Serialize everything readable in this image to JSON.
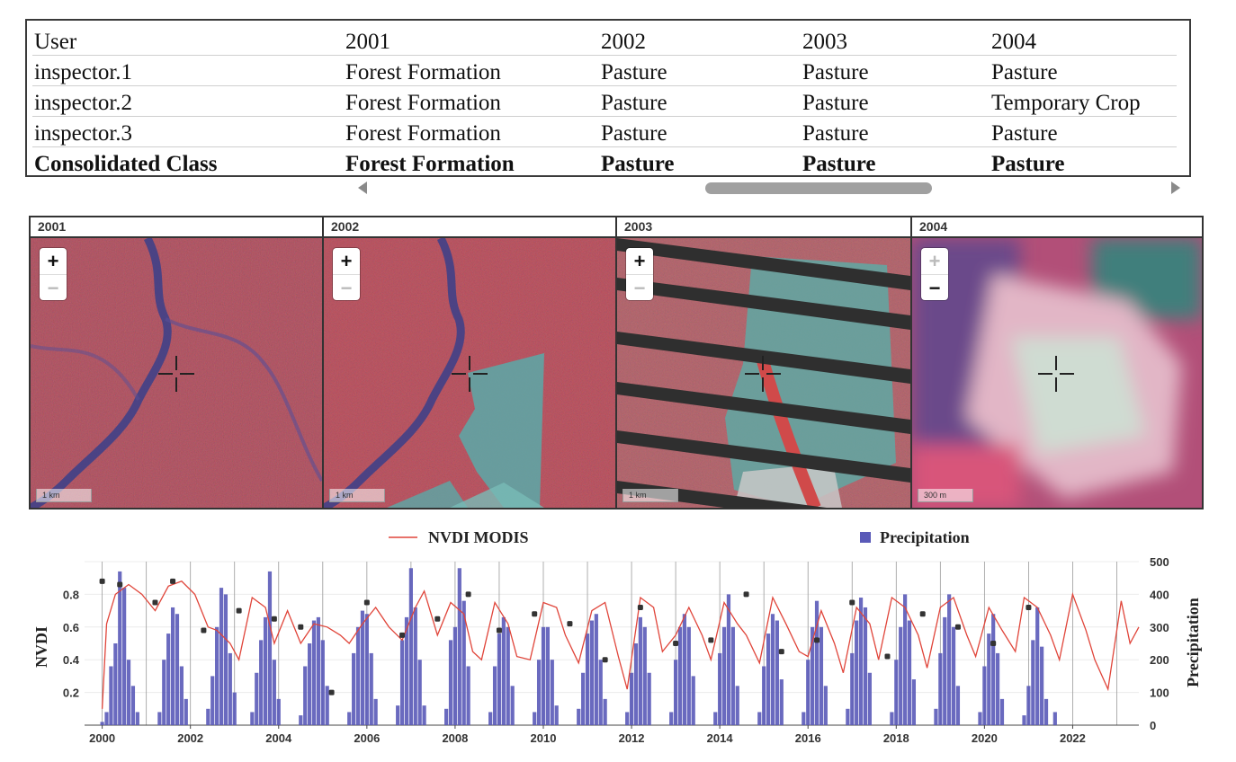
{
  "table": {
    "headers": [
      "User",
      "2001",
      "2002",
      "2003",
      "2004"
    ],
    "rows": [
      [
        "inspector.1",
        "Forest Formation",
        "Pasture",
        "Pasture",
        "Pasture"
      ],
      [
        "inspector.2",
        "Forest Formation",
        "Pasture",
        "Pasture",
        "Temporary Crop"
      ],
      [
        "inspector.3",
        "Forest Formation",
        "Pasture",
        "Pasture",
        "Pasture"
      ],
      [
        "Consolidated Class",
        "Forest Formation",
        "Pasture",
        "Pasture",
        "Pasture"
      ]
    ]
  },
  "panels": [
    {
      "title": "2001",
      "scale": "1 km",
      "zoom_in": "+",
      "zoom_out": "−",
      "zoom_in_disabled": false,
      "zoom_out_disabled": true
    },
    {
      "title": "2002",
      "scale": "1 km",
      "zoom_in": "+",
      "zoom_out": "−",
      "zoom_in_disabled": false,
      "zoom_out_disabled": true
    },
    {
      "title": "2003",
      "scale": "1 km",
      "zoom_in": "+",
      "zoom_out": "−",
      "zoom_in_disabled": false,
      "zoom_out_disabled": true
    },
    {
      "title": "2004",
      "scale": "300 m",
      "zoom_in": "+",
      "zoom_out": "−",
      "zoom_in_disabled": true,
      "zoom_out_disabled": false
    }
  ],
  "chart_data": {
    "type": "line",
    "legend": [
      "NVDI MODIS",
      "Precipitation"
    ],
    "ylabel_left": "NVDI",
    "ylabel_right": "Precipitation",
    "x_ticks": [
      "2000",
      "2002",
      "2004",
      "2006",
      "2008",
      "2010",
      "2012",
      "2014",
      "2016",
      "2018",
      "2020",
      "2022"
    ],
    "y_left_ticks": [
      "0.2",
      "0.4",
      "0.6",
      "0.8"
    ],
    "y_right_ticks": [
      "0",
      "100",
      "200",
      "300",
      "400",
      "500"
    ],
    "x_range": [
      1999.6,
      2023.5
    ],
    "y_left_range": [
      0,
      1.0
    ],
    "y_right_range": [
      0,
      500
    ],
    "grid": true,
    "legend_placement": "top",
    "colors": {
      "ndvi": "#e0453a",
      "precip": "#5a5ab8",
      "markers": "#333333"
    },
    "series": [
      {
        "name": "NVDI MODIS",
        "type": "line",
        "points": [
          [
            2000.0,
            0.1
          ],
          [
            2000.1,
            0.62
          ],
          [
            2000.3,
            0.8
          ],
          [
            2000.6,
            0.86
          ],
          [
            2000.9,
            0.8
          ],
          [
            2001.2,
            0.7
          ],
          [
            2001.5,
            0.85
          ],
          [
            2001.8,
            0.88
          ],
          [
            2002.1,
            0.8
          ],
          [
            2002.4,
            0.6
          ],
          [
            2002.6,
            0.58
          ],
          [
            2002.9,
            0.5
          ],
          [
            2003.1,
            0.4
          ],
          [
            2003.4,
            0.78
          ],
          [
            2003.7,
            0.72
          ],
          [
            2003.9,
            0.5
          ],
          [
            2004.2,
            0.7
          ],
          [
            2004.5,
            0.5
          ],
          [
            2004.8,
            0.62
          ],
          [
            2005.1,
            0.6
          ],
          [
            2005.4,
            0.55
          ],
          [
            2005.6,
            0.5
          ],
          [
            2005.9,
            0.62
          ],
          [
            2006.2,
            0.72
          ],
          [
            2006.5,
            0.6
          ],
          [
            2006.8,
            0.52
          ],
          [
            2007.1,
            0.72
          ],
          [
            2007.3,
            0.82
          ],
          [
            2007.6,
            0.55
          ],
          [
            2007.9,
            0.75
          ],
          [
            2008.2,
            0.68
          ],
          [
            2008.4,
            0.45
          ],
          [
            2008.6,
            0.4
          ],
          [
            2008.9,
            0.75
          ],
          [
            2009.2,
            0.62
          ],
          [
            2009.4,
            0.42
          ],
          [
            2009.7,
            0.4
          ],
          [
            2010.0,
            0.75
          ],
          [
            2010.3,
            0.72
          ],
          [
            2010.5,
            0.55
          ],
          [
            2010.8,
            0.38
          ],
          [
            2011.1,
            0.7
          ],
          [
            2011.4,
            0.75
          ],
          [
            2011.7,
            0.42
          ],
          [
            2011.9,
            0.22
          ],
          [
            2012.2,
            0.78
          ],
          [
            2012.5,
            0.72
          ],
          [
            2012.7,
            0.45
          ],
          [
            2013.0,
            0.55
          ],
          [
            2013.3,
            0.72
          ],
          [
            2013.6,
            0.55
          ],
          [
            2013.8,
            0.4
          ],
          [
            2014.1,
            0.75
          ],
          [
            2014.4,
            0.62
          ],
          [
            2014.6,
            0.55
          ],
          [
            2014.9,
            0.38
          ],
          [
            2015.2,
            0.78
          ],
          [
            2015.5,
            0.62
          ],
          [
            2015.8,
            0.45
          ],
          [
            2016.0,
            0.42
          ],
          [
            2016.3,
            0.7
          ],
          [
            2016.6,
            0.5
          ],
          [
            2016.8,
            0.32
          ],
          [
            2017.1,
            0.72
          ],
          [
            2017.4,
            0.62
          ],
          [
            2017.6,
            0.4
          ],
          [
            2017.9,
            0.78
          ],
          [
            2018.2,
            0.72
          ],
          [
            2018.5,
            0.55
          ],
          [
            2018.7,
            0.35
          ],
          [
            2019.0,
            0.72
          ],
          [
            2019.3,
            0.78
          ],
          [
            2019.6,
            0.55
          ],
          [
            2019.8,
            0.42
          ],
          [
            2020.1,
            0.72
          ],
          [
            2020.4,
            0.58
          ],
          [
            2020.7,
            0.45
          ],
          [
            2020.9,
            0.78
          ],
          [
            2021.2,
            0.72
          ],
          [
            2021.5,
            0.55
          ],
          [
            2021.7,
            0.4
          ],
          [
            2022.0,
            0.8
          ],
          [
            2022.3,
            0.58
          ],
          [
            2022.5,
            0.4
          ],
          [
            2022.8,
            0.22
          ],
          [
            2023.1,
            0.76
          ],
          [
            2023.3,
            0.5
          ],
          [
            2023.5,
            0.6
          ]
        ]
      },
      {
        "name": "Precipitation",
        "type": "bar",
        "points": [
          [
            2000.0,
            10
          ],
          [
            2000.1,
            40
          ],
          [
            2000.2,
            180
          ],
          [
            2000.3,
            250
          ],
          [
            2000.4,
            470
          ],
          [
            2000.5,
            420
          ],
          [
            2000.6,
            200
          ],
          [
            2000.7,
            120
          ],
          [
            2000.8,
            40
          ],
          [
            2001.3,
            40
          ],
          [
            2001.4,
            200
          ],
          [
            2001.5,
            280
          ],
          [
            2001.6,
            360
          ],
          [
            2001.7,
            340
          ],
          [
            2001.8,
            180
          ],
          [
            2001.9,
            80
          ],
          [
            2002.4,
            50
          ],
          [
            2002.5,
            150
          ],
          [
            2002.6,
            300
          ],
          [
            2002.7,
            420
          ],
          [
            2002.8,
            400
          ],
          [
            2002.9,
            220
          ],
          [
            2003.0,
            100
          ],
          [
            2003.4,
            40
          ],
          [
            2003.5,
            160
          ],
          [
            2003.6,
            260
          ],
          [
            2003.7,
            330
          ],
          [
            2003.8,
            470
          ],
          [
            2003.9,
            200
          ],
          [
            2004.0,
            80
          ],
          [
            2004.5,
            30
          ],
          [
            2004.6,
            180
          ],
          [
            2004.7,
            250
          ],
          [
            2004.8,
            320
          ],
          [
            2004.9,
            330
          ],
          [
            2005.0,
            260
          ],
          [
            2005.1,
            120
          ],
          [
            2005.6,
            40
          ],
          [
            2005.7,
            220
          ],
          [
            2005.8,
            300
          ],
          [
            2005.9,
            350
          ],
          [
            2006.0,
            340
          ],
          [
            2006.1,
            220
          ],
          [
            2006.2,
            80
          ],
          [
            2006.7,
            60
          ],
          [
            2006.8,
            260
          ],
          [
            2006.9,
            330
          ],
          [
            2007.0,
            480
          ],
          [
            2007.1,
            360
          ],
          [
            2007.2,
            200
          ],
          [
            2007.3,
            60
          ],
          [
            2007.8,
            50
          ],
          [
            2007.9,
            260
          ],
          [
            2008.0,
            300
          ],
          [
            2008.1,
            480
          ],
          [
            2008.2,
            380
          ],
          [
            2008.3,
            180
          ],
          [
            2008.8,
            40
          ],
          [
            2008.9,
            180
          ],
          [
            2009.0,
            280
          ],
          [
            2009.1,
            330
          ],
          [
            2009.2,
            300
          ],
          [
            2009.3,
            120
          ],
          [
            2009.8,
            40
          ],
          [
            2009.9,
            200
          ],
          [
            2010.0,
            300
          ],
          [
            2010.1,
            300
          ],
          [
            2010.2,
            200
          ],
          [
            2010.3,
            60
          ],
          [
            2010.8,
            50
          ],
          [
            2010.9,
            160
          ],
          [
            2011.0,
            280
          ],
          [
            2011.1,
            320
          ],
          [
            2011.2,
            340
          ],
          [
            2011.3,
            200
          ],
          [
            2011.4,
            80
          ],
          [
            2011.9,
            40
          ],
          [
            2012.0,
            160
          ],
          [
            2012.1,
            250
          ],
          [
            2012.2,
            330
          ],
          [
            2012.3,
            300
          ],
          [
            2012.4,
            160
          ],
          [
            2012.9,
            40
          ],
          [
            2013.0,
            200
          ],
          [
            2013.1,
            300
          ],
          [
            2013.2,
            340
          ],
          [
            2013.3,
            300
          ],
          [
            2013.4,
            150
          ],
          [
            2013.9,
            40
          ],
          [
            2014.0,
            220
          ],
          [
            2014.1,
            300
          ],
          [
            2014.2,
            400
          ],
          [
            2014.3,
            300
          ],
          [
            2014.4,
            120
          ],
          [
            2014.9,
            40
          ],
          [
            2015.0,
            180
          ],
          [
            2015.1,
            280
          ],
          [
            2015.2,
            340
          ],
          [
            2015.3,
            320
          ],
          [
            2015.4,
            140
          ],
          [
            2015.9,
            40
          ],
          [
            2016.0,
            200
          ],
          [
            2016.1,
            300
          ],
          [
            2016.2,
            380
          ],
          [
            2016.3,
            300
          ],
          [
            2016.4,
            120
          ],
          [
            2016.9,
            50
          ],
          [
            2017.0,
            220
          ],
          [
            2017.1,
            320
          ],
          [
            2017.2,
            390
          ],
          [
            2017.3,
            360
          ],
          [
            2017.4,
            160
          ],
          [
            2017.9,
            40
          ],
          [
            2018.0,
            200
          ],
          [
            2018.1,
            300
          ],
          [
            2018.2,
            400
          ],
          [
            2018.3,
            320
          ],
          [
            2018.4,
            140
          ],
          [
            2018.9,
            50
          ],
          [
            2019.0,
            220
          ],
          [
            2019.1,
            330
          ],
          [
            2019.2,
            400
          ],
          [
            2019.3,
            300
          ],
          [
            2019.4,
            120
          ],
          [
            2019.9,
            40
          ],
          [
            2020.0,
            180
          ],
          [
            2020.1,
            280
          ],
          [
            2020.2,
            340
          ],
          [
            2020.3,
            220
          ],
          [
            2020.4,
            80
          ],
          [
            2020.9,
            30
          ],
          [
            2021.0,
            120
          ],
          [
            2021.1,
            260
          ],
          [
            2021.2,
            360
          ],
          [
            2021.3,
            240
          ],
          [
            2021.4,
            80
          ],
          [
            2021.6,
            40
          ]
        ]
      },
      {
        "name": "markers",
        "type": "scatter",
        "points": [
          [
            2000.0,
            0.88
          ],
          [
            2000.4,
            0.86
          ],
          [
            2001.2,
            0.75
          ],
          [
            2001.6,
            0.88
          ],
          [
            2002.3,
            0.58
          ],
          [
            2003.1,
            0.7
          ],
          [
            2003.9,
            0.65
          ],
          [
            2004.5,
            0.6
          ],
          [
            2005.2,
            0.2
          ],
          [
            2006.0,
            0.75
          ],
          [
            2006.8,
            0.55
          ],
          [
            2007.6,
            0.65
          ],
          [
            2008.3,
            0.8
          ],
          [
            2009.0,
            0.58
          ],
          [
            2009.8,
            0.68
          ],
          [
            2010.6,
            0.62
          ],
          [
            2011.4,
            0.4
          ],
          [
            2012.2,
            0.72
          ],
          [
            2013.0,
            0.5
          ],
          [
            2013.8,
            0.52
          ],
          [
            2014.6,
            0.8
          ],
          [
            2015.4,
            0.45
          ],
          [
            2016.2,
            0.52
          ],
          [
            2017.0,
            0.75
          ],
          [
            2017.8,
            0.42
          ],
          [
            2018.6,
            0.68
          ],
          [
            2019.4,
            0.6
          ],
          [
            2020.2,
            0.5
          ],
          [
            2021.0,
            0.72
          ]
        ]
      }
    ]
  }
}
